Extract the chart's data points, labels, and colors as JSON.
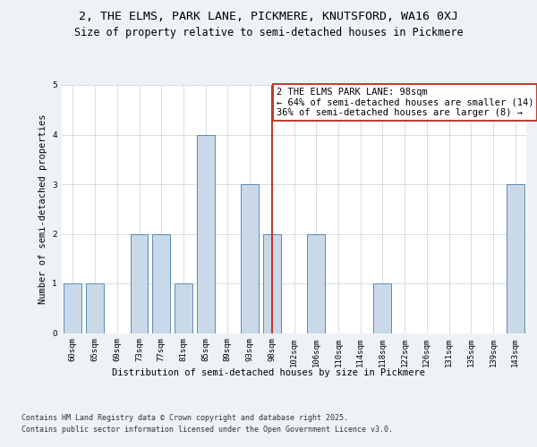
{
  "title_line1": "2, THE ELMS, PARK LANE, PICKMERE, KNUTSFORD, WA16 0XJ",
  "title_line2": "Size of property relative to semi-detached houses in Pickmere",
  "xlabel": "Distribution of semi-detached houses by size in Pickmere",
  "ylabel": "Number of semi-detached properties",
  "categories": [
    "60sqm",
    "65sqm",
    "69sqm",
    "73sqm",
    "77sqm",
    "81sqm",
    "85sqm",
    "89sqm",
    "93sqm",
    "98sqm",
    "102sqm",
    "106sqm",
    "110sqm",
    "114sqm",
    "118sqm",
    "122sqm",
    "126sqm",
    "131sqm",
    "135sqm",
    "139sqm",
    "143sqm"
  ],
  "values": [
    1,
    1,
    0,
    2,
    2,
    1,
    4,
    0,
    3,
    2,
    0,
    2,
    0,
    0,
    1,
    0,
    0,
    0,
    0,
    0,
    3
  ],
  "highlight_index": 9,
  "bar_color": "#c9d9e8",
  "bar_edge_color": "#5b8ab5",
  "highlight_line_color": "#c0392b",
  "annotation_text": "2 THE ELMS PARK LANE: 98sqm\n← 64% of semi-detached houses are smaller (14)\n36% of semi-detached houses are larger (8) →",
  "annotation_box_color": "#ffffff",
  "annotation_box_edge": "#c0392b",
  "ylim": [
    0,
    5
  ],
  "yticks": [
    0,
    1,
    2,
    3,
    4,
    5
  ],
  "footer_line1": "Contains HM Land Registry data © Crown copyright and database right 2025.",
  "footer_line2": "Contains public sector information licensed under the Open Government Licence v3.0.",
  "bg_color": "#eef2f7",
  "plot_bg_color": "#ffffff",
  "grid_color": "#d0d8e0",
  "title_fontsize": 9.5,
  "subtitle_fontsize": 8.5,
  "axis_label_fontsize": 7.5,
  "tick_fontsize": 6.5,
  "footer_fontsize": 6,
  "annotation_fontsize": 7.5
}
